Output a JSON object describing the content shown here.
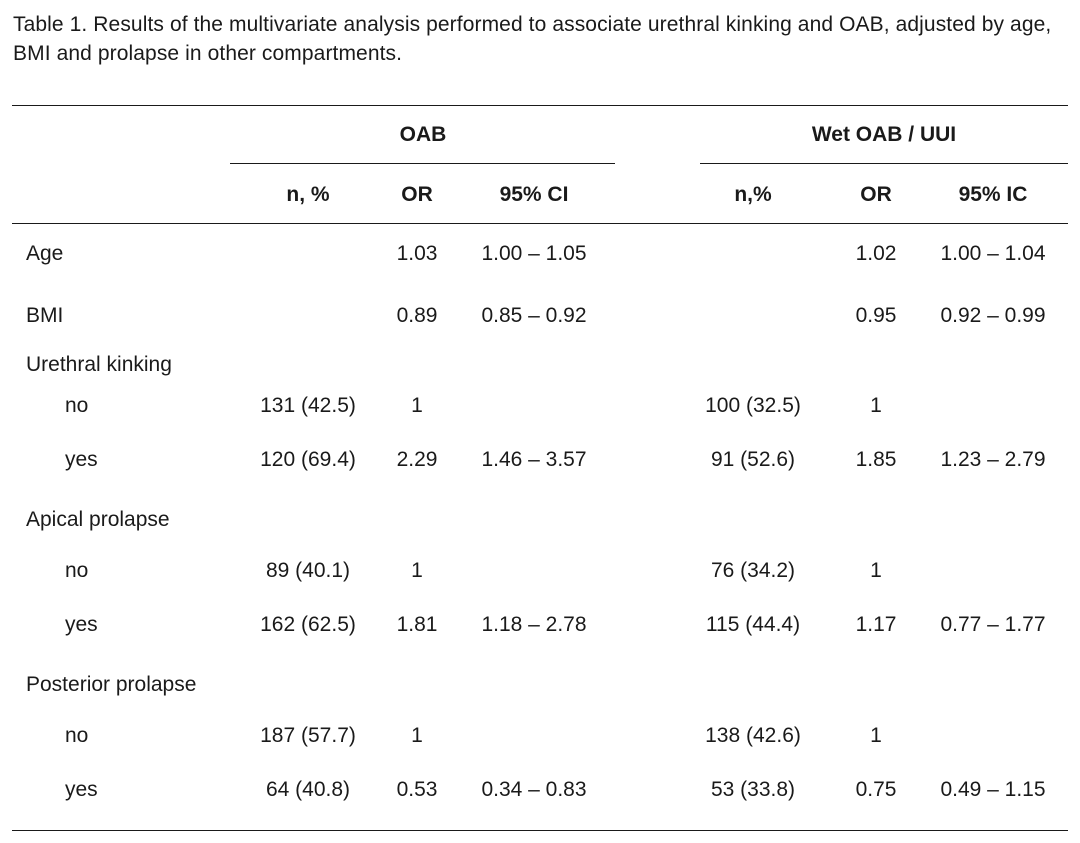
{
  "caption": "Table 1. Results of the multivariate analysis performed to associate urethral kinking and OAB, adjusted by age, BMI and prolapse in other compartments.",
  "groups": [
    "OAB",
    "Wet OAB / UUI"
  ],
  "columns": [
    "n, %",
    "OR",
    "95% CI",
    "n,%",
    "OR",
    "95% IC"
  ],
  "rows": [
    {
      "label": "Age",
      "indent": false,
      "cells": [
        "",
        "1.03",
        "1.00 – 1.05",
        "",
        "1.02",
        "1.00 – 1.04"
      ]
    },
    {
      "label": "BMI",
      "indent": false,
      "cells": [
        "",
        "0.89",
        "0.85 – 0.92",
        "",
        "0.95",
        "0.92 – 0.99"
      ]
    },
    {
      "label": "Urethral kinking",
      "indent": false,
      "cells": [
        "",
        "",
        "",
        "",
        "",
        ""
      ]
    },
    {
      "label": "no",
      "indent": true,
      "cells": [
        "131 (42.5)",
        "1",
        "",
        "100 (32.5)",
        "1",
        ""
      ]
    },
    {
      "label": "yes",
      "indent": true,
      "cells": [
        "120 (69.4)",
        "2.29",
        "1.46 – 3.57",
        "91 (52.6)",
        "1.85",
        "1.23 – 2.79"
      ]
    },
    {
      "label": "Apical prolapse",
      "indent": false,
      "cells": [
        "",
        "",
        "",
        "",
        "",
        ""
      ]
    },
    {
      "label": "no",
      "indent": true,
      "cells": [
        "89 (40.1)",
        "1",
        "",
        "76 (34.2)",
        "1",
        ""
      ]
    },
    {
      "label": "yes",
      "indent": true,
      "cells": [
        "162 (62.5)",
        "1.81",
        "1.18 – 2.78",
        "115 (44.4)",
        "1.17",
        "0.77 – 1.77"
      ]
    },
    {
      "label": "Posterior prolapse",
      "indent": false,
      "cells": [
        "",
        "",
        "",
        "",
        "",
        ""
      ]
    },
    {
      "label": "no",
      "indent": true,
      "cells": [
        "187 (57.7)",
        "1",
        "",
        "138 (42.6)",
        "1",
        ""
      ]
    },
    {
      "label": "yes",
      "indent": true,
      "cells": [
        "64 (40.8)",
        "0.53",
        "0.34 – 0.83",
        "53 (33.8)",
        "0.75",
        "0.49 – 1.15"
      ]
    }
  ]
}
